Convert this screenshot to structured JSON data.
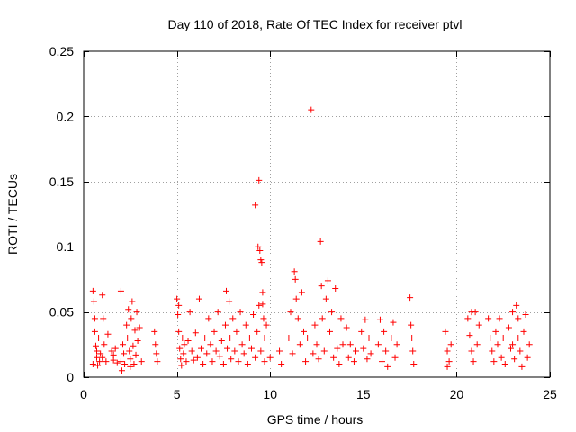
{
  "colors": {
    "series": "#ff0000",
    "grid": "#a0a0a0",
    "axis": "#000000",
    "background": "#ffffff"
  },
  "chart_data": {
    "type": "scatter",
    "title": "Day 110 of 2018, Rate Of TEC Index for receiver ptvl",
    "xlabel": "GPS time / hours",
    "ylabel": "ROTI / TECUs",
    "xlim": [
      0,
      25
    ],
    "ylim": [
      0,
      0.25
    ],
    "x_ticks": [
      0,
      5,
      10,
      15,
      20,
      25
    ],
    "x_tick_labels": [
      "0",
      "5",
      "10",
      "15",
      "20",
      "25"
    ],
    "y_ticks": [
      0,
      0.05,
      0.1,
      0.15,
      0.2,
      0.25
    ],
    "y_tick_labels": [
      "0",
      "0.05",
      "0.1",
      "0.15",
      "0.2",
      "0.25"
    ],
    "grid": true,
    "marker": "+",
    "series": [
      {
        "name": "ROTI",
        "points": [
          [
            0.5,
            0.066
          ],
          [
            0.55,
            0.058
          ],
          [
            0.6,
            0.035
          ],
          [
            0.65,
            0.024
          ],
          [
            0.7,
            0.015
          ],
          [
            0.75,
            0.009
          ],
          [
            0.8,
            0.03
          ],
          [
            0.85,
            0.012
          ],
          [
            0.6,
            0.045
          ],
          [
            0.7,
            0.02
          ],
          [
            0.9,
            0.018
          ],
          [
            0.5,
            0.01
          ],
          [
            1.0,
            0.063
          ],
          [
            1.05,
            0.045
          ],
          [
            1.1,
            0.025
          ],
          [
            1.0,
            0.015
          ],
          [
            1.2,
            0.012
          ],
          [
            1.3,
            0.033
          ],
          [
            1.5,
            0.02
          ],
          [
            1.6,
            0.013
          ],
          [
            1.7,
            0.022
          ],
          [
            1.8,
            0.011
          ],
          [
            1.6,
            0.017
          ],
          [
            2.0,
            0.066
          ],
          [
            2.1,
            0.025
          ],
          [
            2.0,
            0.012
          ],
          [
            2.05,
            0.005
          ],
          [
            2.15,
            0.018
          ],
          [
            2.2,
            0.01
          ],
          [
            2.3,
            0.04
          ],
          [
            2.4,
            0.052
          ],
          [
            2.35,
            0.03
          ],
          [
            2.45,
            0.02
          ],
          [
            2.5,
            0.014
          ],
          [
            2.55,
            0.045
          ],
          [
            2.6,
            0.058
          ],
          [
            2.65,
            0.024
          ],
          [
            2.7,
            0.01
          ],
          [
            2.75,
            0.036
          ],
          [
            2.8,
            0.017
          ],
          [
            2.85,
            0.05
          ],
          [
            2.9,
            0.028
          ],
          [
            3.0,
            0.038
          ],
          [
            3.1,
            0.012
          ],
          [
            2.5,
            0.008
          ],
          [
            3.8,
            0.035
          ],
          [
            3.85,
            0.025
          ],
          [
            3.9,
            0.018
          ],
          [
            3.95,
            0.012
          ],
          [
            5.0,
            0.06
          ],
          [
            5.05,
            0.048
          ],
          [
            5.1,
            0.035
          ],
          [
            5.15,
            0.022
          ],
          [
            5.2,
            0.014
          ],
          [
            5.25,
            0.009
          ],
          [
            5.3,
            0.03
          ],
          [
            5.35,
            0.018
          ],
          [
            5.4,
            0.025
          ],
          [
            5.5,
            0.012
          ],
          [
            5.1,
            0.055
          ],
          [
            5.6,
            0.028
          ],
          [
            5.7,
            0.05
          ],
          [
            5.8,
            0.02
          ],
          [
            5.9,
            0.013
          ],
          [
            6.0,
            0.034
          ],
          [
            6.1,
            0.015
          ],
          [
            6.2,
            0.06
          ],
          [
            6.3,
            0.022
          ],
          [
            6.4,
            0.01
          ],
          [
            6.5,
            0.03
          ],
          [
            6.6,
            0.018
          ],
          [
            6.7,
            0.045
          ],
          [
            6.8,
            0.025
          ],
          [
            6.9,
            0.012
          ],
          [
            7.0,
            0.035
          ],
          [
            7.1,
            0.02
          ],
          [
            7.2,
            0.05
          ],
          [
            7.3,
            0.016
          ],
          [
            7.4,
            0.028
          ],
          [
            7.5,
            0.01
          ],
          [
            7.6,
            0.04
          ],
          [
            7.65,
            0.066
          ],
          [
            7.7,
            0.022
          ],
          [
            7.8,
            0.058
          ],
          [
            7.85,
            0.03
          ],
          [
            7.9,
            0.014
          ],
          [
            8.0,
            0.045
          ],
          [
            8.1,
            0.02
          ],
          [
            8.2,
            0.035
          ],
          [
            8.3,
            0.012
          ],
          [
            8.4,
            0.05
          ],
          [
            8.5,
            0.025
          ],
          [
            8.6,
            0.018
          ],
          [
            8.7,
            0.04
          ],
          [
            8.8,
            0.01
          ],
          [
            8.9,
            0.03
          ],
          [
            9.0,
            0.022
          ],
          [
            9.1,
            0.048
          ],
          [
            9.2,
            0.015
          ],
          [
            9.3,
            0.035
          ],
          [
            9.2,
            0.132
          ],
          [
            9.35,
            0.1
          ],
          [
            9.4,
            0.151
          ],
          [
            9.45,
            0.097
          ],
          [
            9.5,
            0.09
          ],
          [
            9.55,
            0.088
          ],
          [
            9.6,
            0.056
          ],
          [
            9.65,
            0.045
          ],
          [
            9.7,
            0.03
          ],
          [
            9.5,
            0.02
          ],
          [
            9.6,
            0.065
          ],
          [
            9.7,
            0.012
          ],
          [
            9.8,
            0.04
          ],
          [
            9.4,
            0.055
          ],
          [
            10.0,
            0.015
          ],
          [
            10.5,
            0.02
          ],
          [
            10.6,
            0.01
          ],
          [
            11.0,
            0.03
          ],
          [
            11.1,
            0.05
          ],
          [
            11.2,
            0.018
          ],
          [
            11.3,
            0.081
          ],
          [
            11.35,
            0.075
          ],
          [
            11.4,
            0.06
          ],
          [
            11.5,
            0.045
          ],
          [
            11.6,
            0.025
          ],
          [
            11.7,
            0.065
          ],
          [
            11.8,
            0.035
          ],
          [
            11.9,
            0.012
          ],
          [
            12.0,
            0.03
          ],
          [
            12.2,
            0.205
          ],
          [
            12.3,
            0.018
          ],
          [
            12.4,
            0.04
          ],
          [
            12.5,
            0.025
          ],
          [
            12.6,
            0.014
          ],
          [
            12.7,
            0.104
          ],
          [
            12.75,
            0.07
          ],
          [
            12.8,
            0.045
          ],
          [
            12.9,
            0.02
          ],
          [
            13.0,
            0.06
          ],
          [
            13.1,
            0.074
          ],
          [
            13.2,
            0.035
          ],
          [
            13.3,
            0.05
          ],
          [
            13.4,
            0.015
          ],
          [
            13.5,
            0.068
          ],
          [
            13.6,
            0.022
          ],
          [
            13.7,
            0.01
          ],
          [
            13.8,
            0.045
          ],
          [
            13.9,
            0.025
          ],
          [
            14.1,
            0.038
          ],
          [
            14.2,
            0.015
          ],
          [
            14.3,
            0.025
          ],
          [
            14.5,
            0.012
          ],
          [
            14.6,
            0.02
          ],
          [
            14.9,
            0.035
          ],
          [
            15.0,
            0.022
          ],
          [
            15.1,
            0.044
          ],
          [
            15.2,
            0.014
          ],
          [
            15.3,
            0.03
          ],
          [
            15.4,
            0.018
          ],
          [
            15.8,
            0.025
          ],
          [
            15.9,
            0.044
          ],
          [
            16.0,
            0.012
          ],
          [
            16.1,
            0.035
          ],
          [
            16.2,
            0.02
          ],
          [
            16.3,
            0.008
          ],
          [
            16.5,
            0.03
          ],
          [
            16.6,
            0.042
          ],
          [
            16.7,
            0.015
          ],
          [
            16.8,
            0.025
          ],
          [
            17.5,
            0.061
          ],
          [
            17.6,
            0.03
          ],
          [
            17.65,
            0.02
          ],
          [
            17.7,
            0.01
          ],
          [
            17.55,
            0.04
          ],
          [
            19.4,
            0.035
          ],
          [
            19.5,
            0.02
          ],
          [
            19.6,
            0.012
          ],
          [
            19.7,
            0.025
          ],
          [
            19.5,
            0.008
          ],
          [
            20.6,
            0.045
          ],
          [
            20.7,
            0.032
          ],
          [
            20.8,
            0.02
          ],
          [
            20.9,
            0.012
          ],
          [
            21.0,
            0.05
          ],
          [
            21.1,
            0.025
          ],
          [
            21.2,
            0.04
          ],
          [
            20.8,
            0.05
          ],
          [
            21.7,
            0.045
          ],
          [
            21.8,
            0.03
          ],
          [
            21.9,
            0.02
          ],
          [
            22.0,
            0.012
          ],
          [
            22.1,
            0.035
          ],
          [
            22.2,
            0.025
          ],
          [
            22.3,
            0.045
          ],
          [
            22.4,
            0.015
          ],
          [
            22.5,
            0.03
          ],
          [
            22.6,
            0.01
          ],
          [
            22.8,
            0.038
          ],
          [
            22.9,
            0.022
          ],
          [
            23.0,
            0.05
          ],
          [
            23.1,
            0.014
          ],
          [
            23.2,
            0.055
          ],
          [
            23.3,
            0.03
          ],
          [
            23.4,
            0.02
          ],
          [
            23.5,
            0.008
          ],
          [
            23.6,
            0.035
          ],
          [
            23.7,
            0.048
          ],
          [
            23.8,
            0.015
          ],
          [
            23.9,
            0.025
          ],
          [
            23.3,
            0.045
          ],
          [
            23.0,
            0.025
          ]
        ]
      }
    ]
  }
}
